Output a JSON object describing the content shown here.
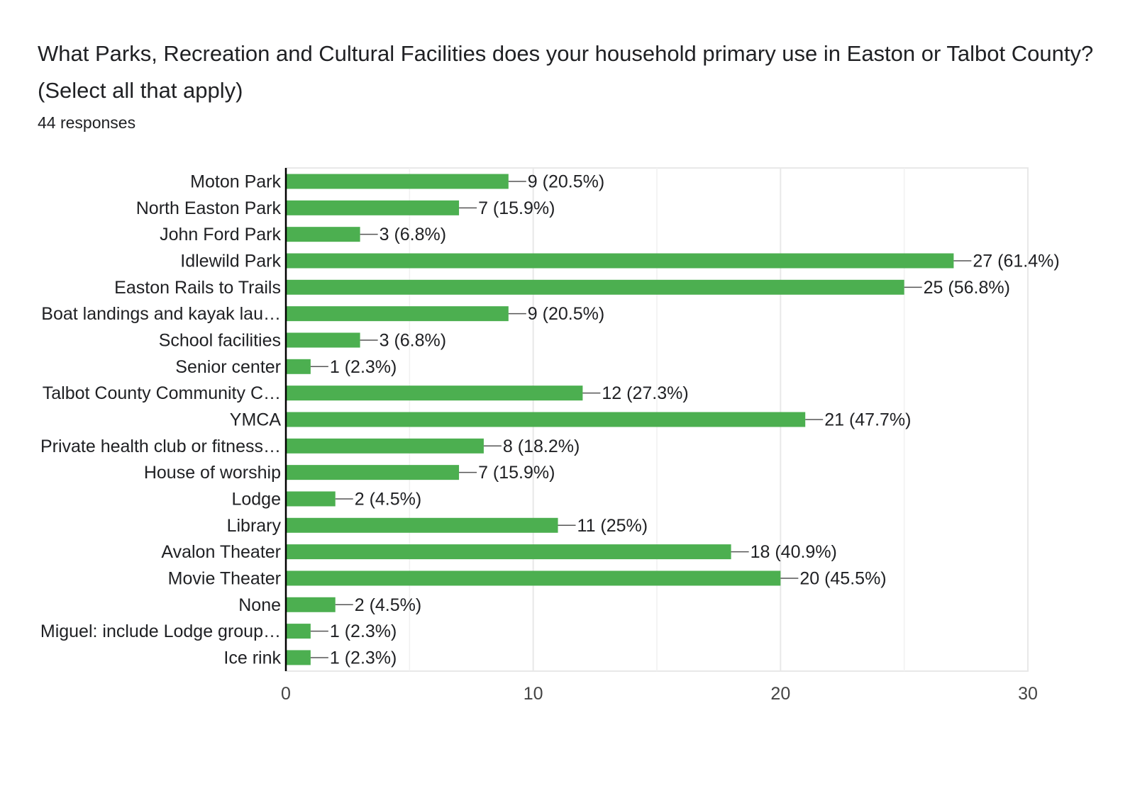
{
  "question": {
    "title": "What Parks, Recreation and Cultural Facilities does your household primary use in Easton or Talbot County? (Select all that apply)",
    "responses": "44 responses"
  },
  "colors": {
    "bar": "#4caf50",
    "grid": "#e8e8e8",
    "axis": "#000000",
    "text": "#202124",
    "tick": "#444444"
  },
  "chart_data": {
    "type": "bar",
    "orientation": "horizontal",
    "title": "",
    "xlabel": "",
    "ylabel": "",
    "xlim": [
      0,
      30
    ],
    "xticks": [
      0,
      10,
      20,
      30
    ],
    "grid": true,
    "legend": "none",
    "categories": [
      "Moton Park",
      "North Easton Park",
      "John Ford Park",
      "Idlewild Park",
      "Easton Rails to Trails",
      "Boat landings and kayak lau…",
      "School facilities",
      "Senior center",
      "Talbot County Community C…",
      "YMCA",
      "Private health club or fitness…",
      "House of worship",
      "Lodge",
      "Library",
      "Avalon Theater",
      "Movie Theater",
      "None",
      "Miguel: include Lodge group…",
      "Ice rink"
    ],
    "values": [
      9,
      7,
      3,
      27,
      25,
      9,
      3,
      1,
      12,
      21,
      8,
      7,
      2,
      11,
      18,
      20,
      2,
      1,
      1
    ],
    "data_labels": [
      "9 (20.5%)",
      "7 (15.9%)",
      "3 (6.8%)",
      "27 (61.4%)",
      "25 (56.8%)",
      "9 (20.5%)",
      "3 (6.8%)",
      "1 (2.3%)",
      "12 (27.3%)",
      "21 (47.7%)",
      "8 (18.2%)",
      "7 (15.9%)",
      "2 (4.5%)",
      "11 (25%)",
      "18 (40.9%)",
      "20 (45.5%)",
      "2 (4.5%)",
      "1 (2.3%)",
      "1 (2.3%)"
    ]
  }
}
